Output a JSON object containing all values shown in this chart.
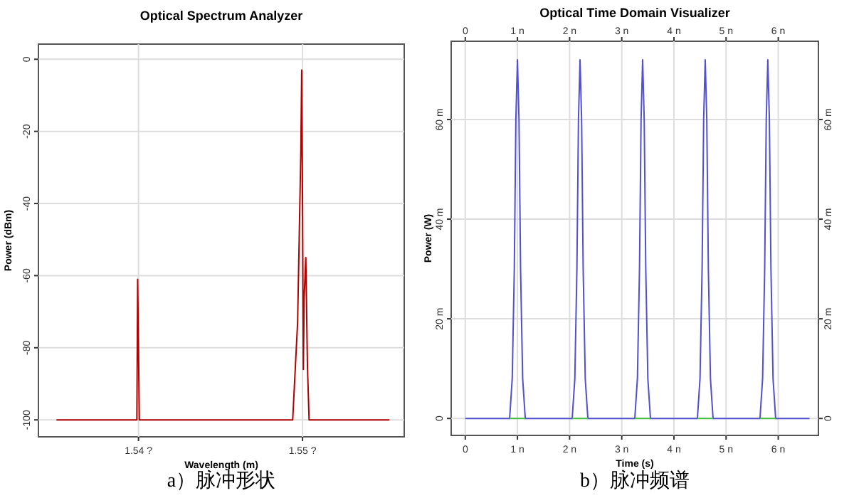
{
  "chart_data": [
    {
      "type": "line",
      "title": "Optical Spectrum Analyzer",
      "xlabel": "Wavelength (m)",
      "ylabel": "Power (dBm)",
      "annotations": [
        "a）脉冲形状"
      ],
      "xlim": [
        1.5339,
        1.5562
      ],
      "xticks": [
        {
          "value": 1.54,
          "label": "1.54 ?"
        },
        {
          "value": 1.55,
          "label": "1.55 ?"
        }
      ],
      "ylim": [
        -104.7,
        4.2
      ],
      "yticks": [
        0,
        -20,
        -40,
        -60,
        -80,
        -100
      ],
      "grid": true,
      "series": [
        {
          "color": "#b00000",
          "x": [
            1.535,
            1.5399,
            1.53995,
            1.54,
            1.54005,
            1.5494,
            1.5497,
            1.5499,
            1.54995,
            1.55,
            1.55005,
            1.5501,
            1.5502,
            1.5503,
            1.5504,
            1.5553
          ],
          "values": [
            -100,
            -100,
            -61,
            -80,
            -100,
            -100,
            -73,
            -25,
            -3,
            -40,
            -86,
            -66,
            -55,
            -85,
            -100,
            -100
          ]
        }
      ]
    },
    {
      "type": "line",
      "title": "Optical Time Domain Visualizer",
      "xlabel": "Time (s)",
      "ylabel": "Power (W)",
      "annotations": [
        "b）脉冲频谱"
      ],
      "xlim": [
        -0.27,
        6.77
      ],
      "xticks": [
        0,
        {
          "value": 1,
          "label": "1 n"
        },
        {
          "value": 2,
          "label": "2 n"
        },
        {
          "value": 3,
          "label": "3 n"
        },
        {
          "value": 4,
          "label": "4 n"
        },
        {
          "value": 5,
          "label": "5 n"
        },
        {
          "value": 6,
          "label": "6 n"
        }
      ],
      "x2lim": [
        -0.27,
        6.77
      ],
      "x2ticks": [
        0,
        {
          "value": 1,
          "label": "1 n"
        },
        {
          "value": 2,
          "label": "2 n"
        },
        {
          "value": 3,
          "label": "3 n"
        },
        {
          "value": 4,
          "label": "4 n"
        },
        {
          "value": 5,
          "label": "5 n"
        },
        {
          "value": 6,
          "label": "6 n"
        }
      ],
      "ylim": [
        -3.4,
        75.7
      ],
      "yticks": [
        0,
        {
          "value": 20,
          "label": "20 m"
        },
        {
          "value": 40,
          "label": "40 m"
        },
        {
          "value": 60,
          "label": "60 m"
        }
      ],
      "y2lim": [
        -3.4,
        75.7
      ],
      "y2ticks": [
        0,
        {
          "value": 20,
          "label": "20 m"
        },
        {
          "value": 40,
          "label": "40 m"
        },
        {
          "value": 60,
          "label": "60 m"
        }
      ],
      "grid": true,
      "series": [
        {
          "color": "#5050d0",
          "x": [
            0,
            0.85,
            0.9,
            0.94,
            0.97,
            1.0,
            1.03,
            1.06,
            1.1,
            1.15,
            2.05,
            2.1,
            2.14,
            2.17,
            2.2,
            2.23,
            2.26,
            2.3,
            2.35,
            3.25,
            3.3,
            3.34,
            3.37,
            3.4,
            3.43,
            3.46,
            3.5,
            3.55,
            4.45,
            4.5,
            4.54,
            4.57,
            4.6,
            4.63,
            4.66,
            4.7,
            4.75,
            5.65,
            5.7,
            5.74,
            5.77,
            5.8,
            5.83,
            5.86,
            5.9,
            5.95,
            6.6
          ],
          "values": [
            0,
            0,
            8,
            30,
            60,
            72,
            60,
            30,
            8,
            0,
            0,
            8,
            30,
            60,
            72,
            60,
            30,
            8,
            0,
            0,
            8,
            30,
            60,
            72,
            60,
            30,
            8,
            0,
            0,
            8,
            30,
            60,
            72,
            60,
            30,
            8,
            0,
            0,
            8,
            30,
            60,
            72,
            60,
            30,
            8,
            0,
            0
          ]
        },
        {
          "color": "#40c040",
          "x": [
            0.85,
            1.15
          ],
          "values": [
            0,
            0
          ]
        },
        {
          "color": "#40c040",
          "x": [
            2.05,
            2.35
          ],
          "values": [
            0,
            0
          ]
        },
        {
          "color": "#40c040",
          "x": [
            3.25,
            3.55
          ],
          "values": [
            0,
            0
          ]
        },
        {
          "color": "#40c040",
          "x": [
            4.45,
            4.75
          ],
          "values": [
            0,
            0
          ]
        },
        {
          "color": "#40c040",
          "x": [
            5.65,
            5.95
          ],
          "values": [
            0,
            0
          ]
        }
      ]
    }
  ]
}
